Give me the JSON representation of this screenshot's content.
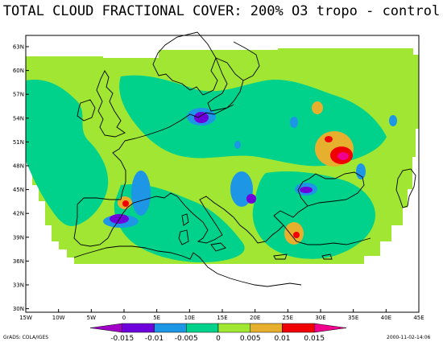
{
  "title": "TOTAL CLOUD FRACTIONAL COVER: 200% O3 tropo - control",
  "credit": "GrADS: COLA/IGES",
  "timestamp": "2000-11-02-14:06",
  "lat_labels": [
    "63N",
    "60N",
    "57N",
    "54N",
    "51N",
    "48N",
    "45N",
    "42N",
    "39N",
    "36N",
    "33N",
    "30N"
  ],
  "lon_labels": [
    "15W",
    "10W",
    "5W",
    "0",
    "5E",
    "10E",
    "15E",
    "20E",
    "25E",
    "30E",
    "35E",
    "40E",
    "45E"
  ],
  "colorbar": {
    "labels": [
      "-0.015",
      "-0.01",
      "-0.005",
      "0",
      "0.005",
      "0.01",
      "0.015"
    ],
    "colors": [
      "#a000c8",
      "#6e00dc",
      "#1e96e6",
      "#00d28c",
      "#a0e632",
      "#e6af2d",
      "#f00000",
      "#f0008c"
    ]
  },
  "chart_data": {
    "type": "heatmap",
    "title": "TOTAL CLOUD FRACTIONAL COVER: 200% O3 tropo - control",
    "xlim": [
      -15,
      45
    ],
    "ylim": [
      30,
      64
    ],
    "contour_levels": [
      -0.015,
      -0.01,
      -0.005,
      0,
      0.005,
      0.01,
      0.015
    ],
    "background_level": "0 to 0.005",
    "features": [
      {
        "lon": 33.5,
        "lat": 49.7,
        "value": 0.02
      },
      {
        "lon": 31.5,
        "lat": 51.0,
        "value": 0.01
      },
      {
        "lon": 29.5,
        "lat": 55.0,
        "value": 0.007
      },
      {
        "lon": 12.0,
        "lat": 54.3,
        "value": -0.015
      },
      {
        "lon": 0.5,
        "lat": 41.5,
        "value": -0.015
      },
      {
        "lon": 1.5,
        "lat": 43.6,
        "value": 0.015
      },
      {
        "lon": 19.5,
        "lat": 44.2,
        "value": -0.015
      },
      {
        "lon": 29.0,
        "lat": 45.1,
        "value": -0.015
      },
      {
        "lon": 27.0,
        "lat": 39.5,
        "value": 0.007
      },
      {
        "lon": 35.0,
        "lat": 48.5,
        "value": -0.007
      },
      {
        "lon": 43.0,
        "lat": 54.0,
        "value": -0.007
      },
      {
        "lon": 3.5,
        "lat": 45.5,
        "value": -0.007
      },
      {
        "lon": 20.0,
        "lat": 43.5,
        "value": -0.007
      },
      {
        "lon": 26.5,
        "lat": 45.0,
        "value": -0.006
      }
    ]
  }
}
